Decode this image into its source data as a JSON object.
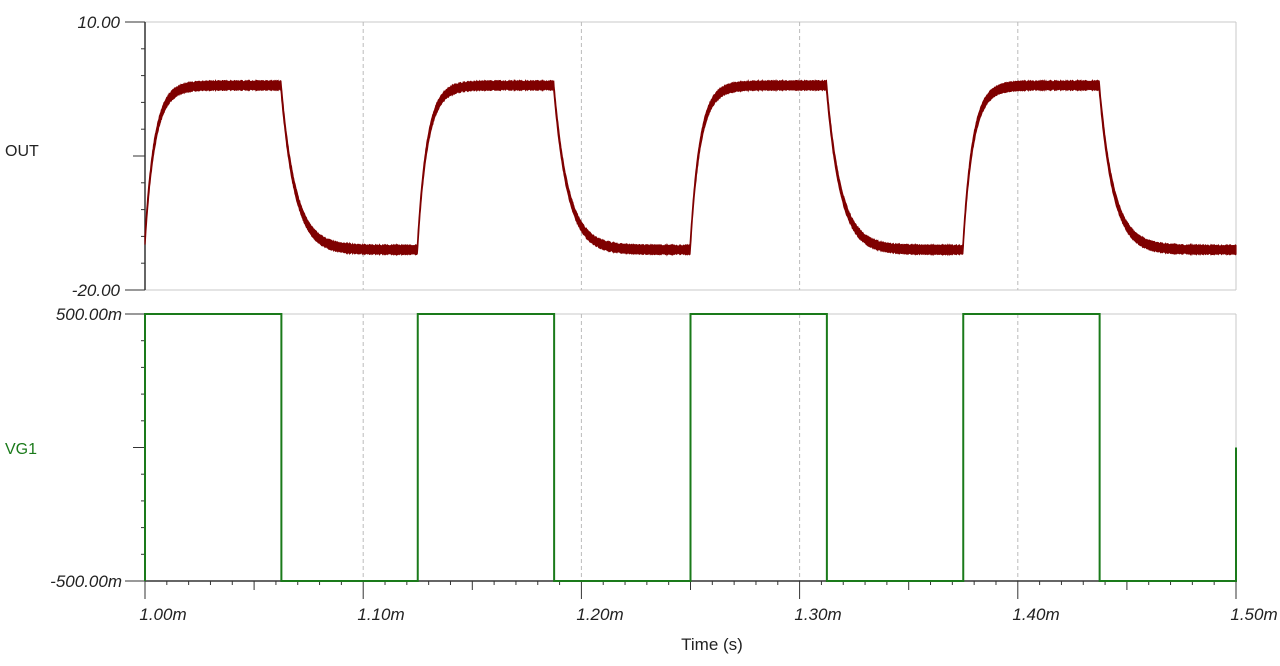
{
  "chart_data": {
    "type": "line",
    "xlabel": "Time (s)",
    "xlim": [
      1.0,
      1.5
    ],
    "x_unit": "ms",
    "x_ticks": [
      1.0,
      1.1,
      1.2,
      1.3,
      1.4,
      1.5
    ],
    "x_tick_labels": [
      "1.00m",
      "1.10m",
      "1.20m",
      "1.30m",
      "1.40m",
      "1.50m"
    ],
    "grid": "vertical dashed at major x ticks",
    "panels": [
      {
        "name": "OUT",
        "color": "#7f0000",
        "ylim": [
          -20,
          10
        ],
        "y_tick_labels": [
          "10.00",
          "-20.00"
        ],
        "signal_model": {
          "high_level": 2.9,
          "low_level": -15.5,
          "start_value": -14.4,
          "tau_rise_ms": 0.0045,
          "tau_fall_ms": 0.0065,
          "ripple_pp": 1.1
        }
      },
      {
        "name": "VG1",
        "color": "#1a7a1a",
        "ylim": [
          -0.5,
          0.5
        ],
        "y_tick_labels": [
          "500.00m",
          "-500.00m"
        ],
        "high_level": 0.5,
        "low_level": -0.5,
        "high_intervals_ms": [
          [
            1.0,
            1.0625
          ],
          [
            1.125,
            1.1875
          ],
          [
            1.25,
            1.3125
          ],
          [
            1.375,
            1.4375
          ]
        ],
        "end_value": 0.0
      }
    ]
  }
}
